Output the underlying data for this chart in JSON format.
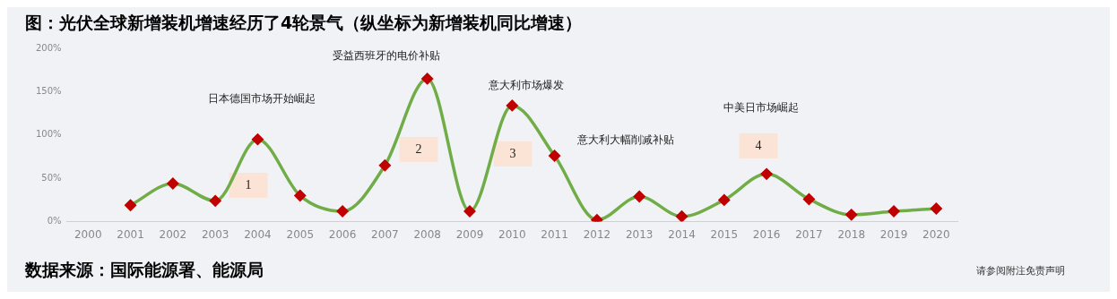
{
  "chart_data": {
    "type": "line",
    "title": "图：光伏全球新增装机增速经历了4轮景气（纵坐标为新增装机同比增速）",
    "categories": [
      "2000",
      "2001",
      "2002",
      "2003",
      "2004",
      "2005",
      "2006",
      "2007",
      "2008",
      "2009",
      "2010",
      "2011",
      "2012",
      "2013",
      "2014",
      "2015",
      "2016",
      "2017",
      "2018",
      "2019",
      "2020"
    ],
    "series": [
      {
        "color": "#70ad47",
        "values": [
          null,
          19,
          44,
          24,
          95,
          30,
          12,
          65,
          165,
          12,
          134,
          76,
          2,
          29,
          6,
          25,
          55,
          26,
          8,
          12,
          15
        ]
      }
    ],
    "ylim": [
      0,
      200
    ],
    "yticks": [
      {
        "value": 0,
        "label": "0%"
      },
      {
        "value": 50,
        "label": "50%"
      },
      {
        "value": 100,
        "label": "100%"
      },
      {
        "value": 150,
        "label": "150%"
      },
      {
        "value": 200,
        "label": "200%"
      }
    ],
    "grid": false,
    "legend": false,
    "marker": "diamond",
    "line_style": "solid",
    "annotations": [
      "1",
      "2",
      "3",
      "4",
      "日本德国市场开始崛起",
      "受益西班牙的电价补贴",
      "意大利市场爆发",
      "意大利大幅削减补贴",
      "中美日市场崛起",
      "数据来源：国际能源署、能源局",
      "请参阅附注免责声明"
    ]
  }
}
